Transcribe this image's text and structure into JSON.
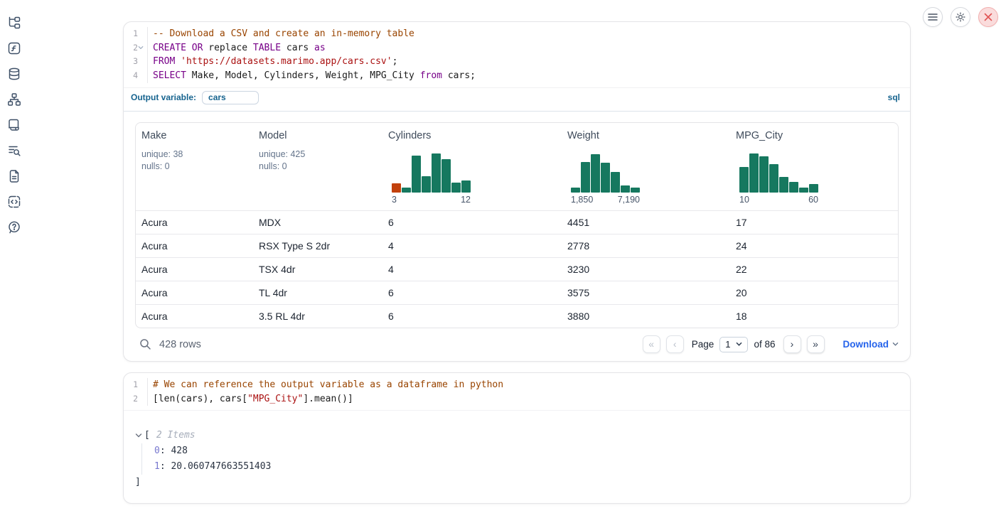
{
  "colors": {
    "histogram_green": "#16785f",
    "histogram_highlight_orange": "#c2410c",
    "sql_accent_blue": "#17648f",
    "link_blue": "#2563eb",
    "close_red": "#e05252"
  },
  "sidebar": {
    "icons": [
      "file-tree",
      "variables",
      "datasources",
      "dependencies",
      "logs",
      "text-search",
      "documentation",
      "snippets",
      "help"
    ]
  },
  "top_controls": {
    "buttons": [
      "menu",
      "settings",
      "shutdown"
    ]
  },
  "sql_cell": {
    "lines": [
      {
        "num": "1",
        "fold": false,
        "tokens": [
          {
            "text": "-- Download a CSV and create an in-memory table",
            "type": "comment"
          }
        ]
      },
      {
        "num": "2",
        "fold": true,
        "tokens": [
          {
            "text": "CREATE OR",
            "type": "keyword"
          },
          {
            "text": " replace ",
            "type": "plain"
          },
          {
            "text": "TABLE",
            "type": "keyword"
          },
          {
            "text": " cars ",
            "type": "plain"
          },
          {
            "text": "as",
            "type": "keyword"
          }
        ]
      },
      {
        "num": "3",
        "fold": false,
        "tokens": [
          {
            "text": "FROM",
            "type": "keyword"
          },
          {
            "text": " ",
            "type": "plain"
          },
          {
            "text": "'https://datasets.marimo.app/cars.csv'",
            "type": "string"
          },
          {
            "text": ";",
            "type": "plain"
          }
        ]
      },
      {
        "num": "4",
        "fold": false,
        "tokens": [
          {
            "text": "SELECT",
            "type": "keyword"
          },
          {
            "text": " Make, Model, Cylinders, Weight, MPG_City ",
            "type": "plain"
          },
          {
            "text": "from",
            "type": "keyword"
          },
          {
            "text": " cars;",
            "type": "plain"
          }
        ]
      }
    ],
    "output_variable_label": "Output variable:",
    "output_variable_value": "cars",
    "language_badge": "sql",
    "table": {
      "columns": [
        {
          "name": "Make",
          "stats": [
            "unique: 38",
            "nulls: 0"
          ]
        },
        {
          "name": "Model",
          "stats": [
            "unique: 425",
            "nulls: 0"
          ]
        },
        {
          "name": "Cylinders",
          "histogram": {
            "type": "bar",
            "bars": [
              0.24,
              0.13,
              0.95,
              0.42,
              1.0,
              0.85,
              0.26,
              0.31
            ],
            "highlight_first": true,
            "min_label": "3",
            "max_label": "12"
          }
        },
        {
          "name": "Weight",
          "histogram": {
            "type": "bar",
            "bars": [
              0.12,
              0.78,
              0.98,
              0.76,
              0.52,
              0.18,
              0.13
            ],
            "highlight_first": false,
            "min_label": "1,850",
            "max_label": "7,190"
          }
        },
        {
          "name": "MPG_City",
          "histogram": {
            "type": "bar",
            "bars": [
              0.65,
              1.0,
              0.92,
              0.72,
              0.4,
              0.28,
              0.12,
              0.22
            ],
            "highlight_first": false,
            "min_label": "10",
            "max_label": "60"
          }
        }
      ],
      "rows": [
        [
          "Acura",
          "MDX",
          "6",
          "4451",
          "17"
        ],
        [
          "Acura",
          "RSX Type S 2dr",
          "4",
          "2778",
          "24"
        ],
        [
          "Acura",
          "TSX 4dr",
          "4",
          "3230",
          "22"
        ],
        [
          "Acura",
          "TL 4dr",
          "6",
          "3575",
          "20"
        ],
        [
          "Acura",
          "3.5 RL 4dr",
          "6",
          "3880",
          "18"
        ]
      ],
      "footer": {
        "row_count": "428 rows",
        "first_label": "«",
        "prev_label": "‹",
        "page_label": "Page",
        "page_value": "1",
        "of_label": "of 86",
        "next_label": "›",
        "last_label": "»",
        "download_label": "Download"
      }
    }
  },
  "python_cell": {
    "lines": [
      {
        "num": "1",
        "fold": false,
        "tokens": [
          {
            "text": "# We can reference the output variable as a dataframe in python",
            "type": "comment"
          }
        ]
      },
      {
        "num": "2",
        "fold": false,
        "tokens": [
          {
            "text": "[len(cars), cars[",
            "type": "plain"
          },
          {
            "text": "\"MPG_City\"",
            "type": "string"
          },
          {
            "text": "].mean()]",
            "type": "plain"
          }
        ]
      }
    ],
    "output": {
      "bracket_open": "[",
      "items_label": "2 Items",
      "entries": [
        {
          "key": "0",
          "value": "428"
        },
        {
          "key": "1",
          "value": "20.060747663551403"
        }
      ],
      "bracket_close": "]"
    }
  }
}
